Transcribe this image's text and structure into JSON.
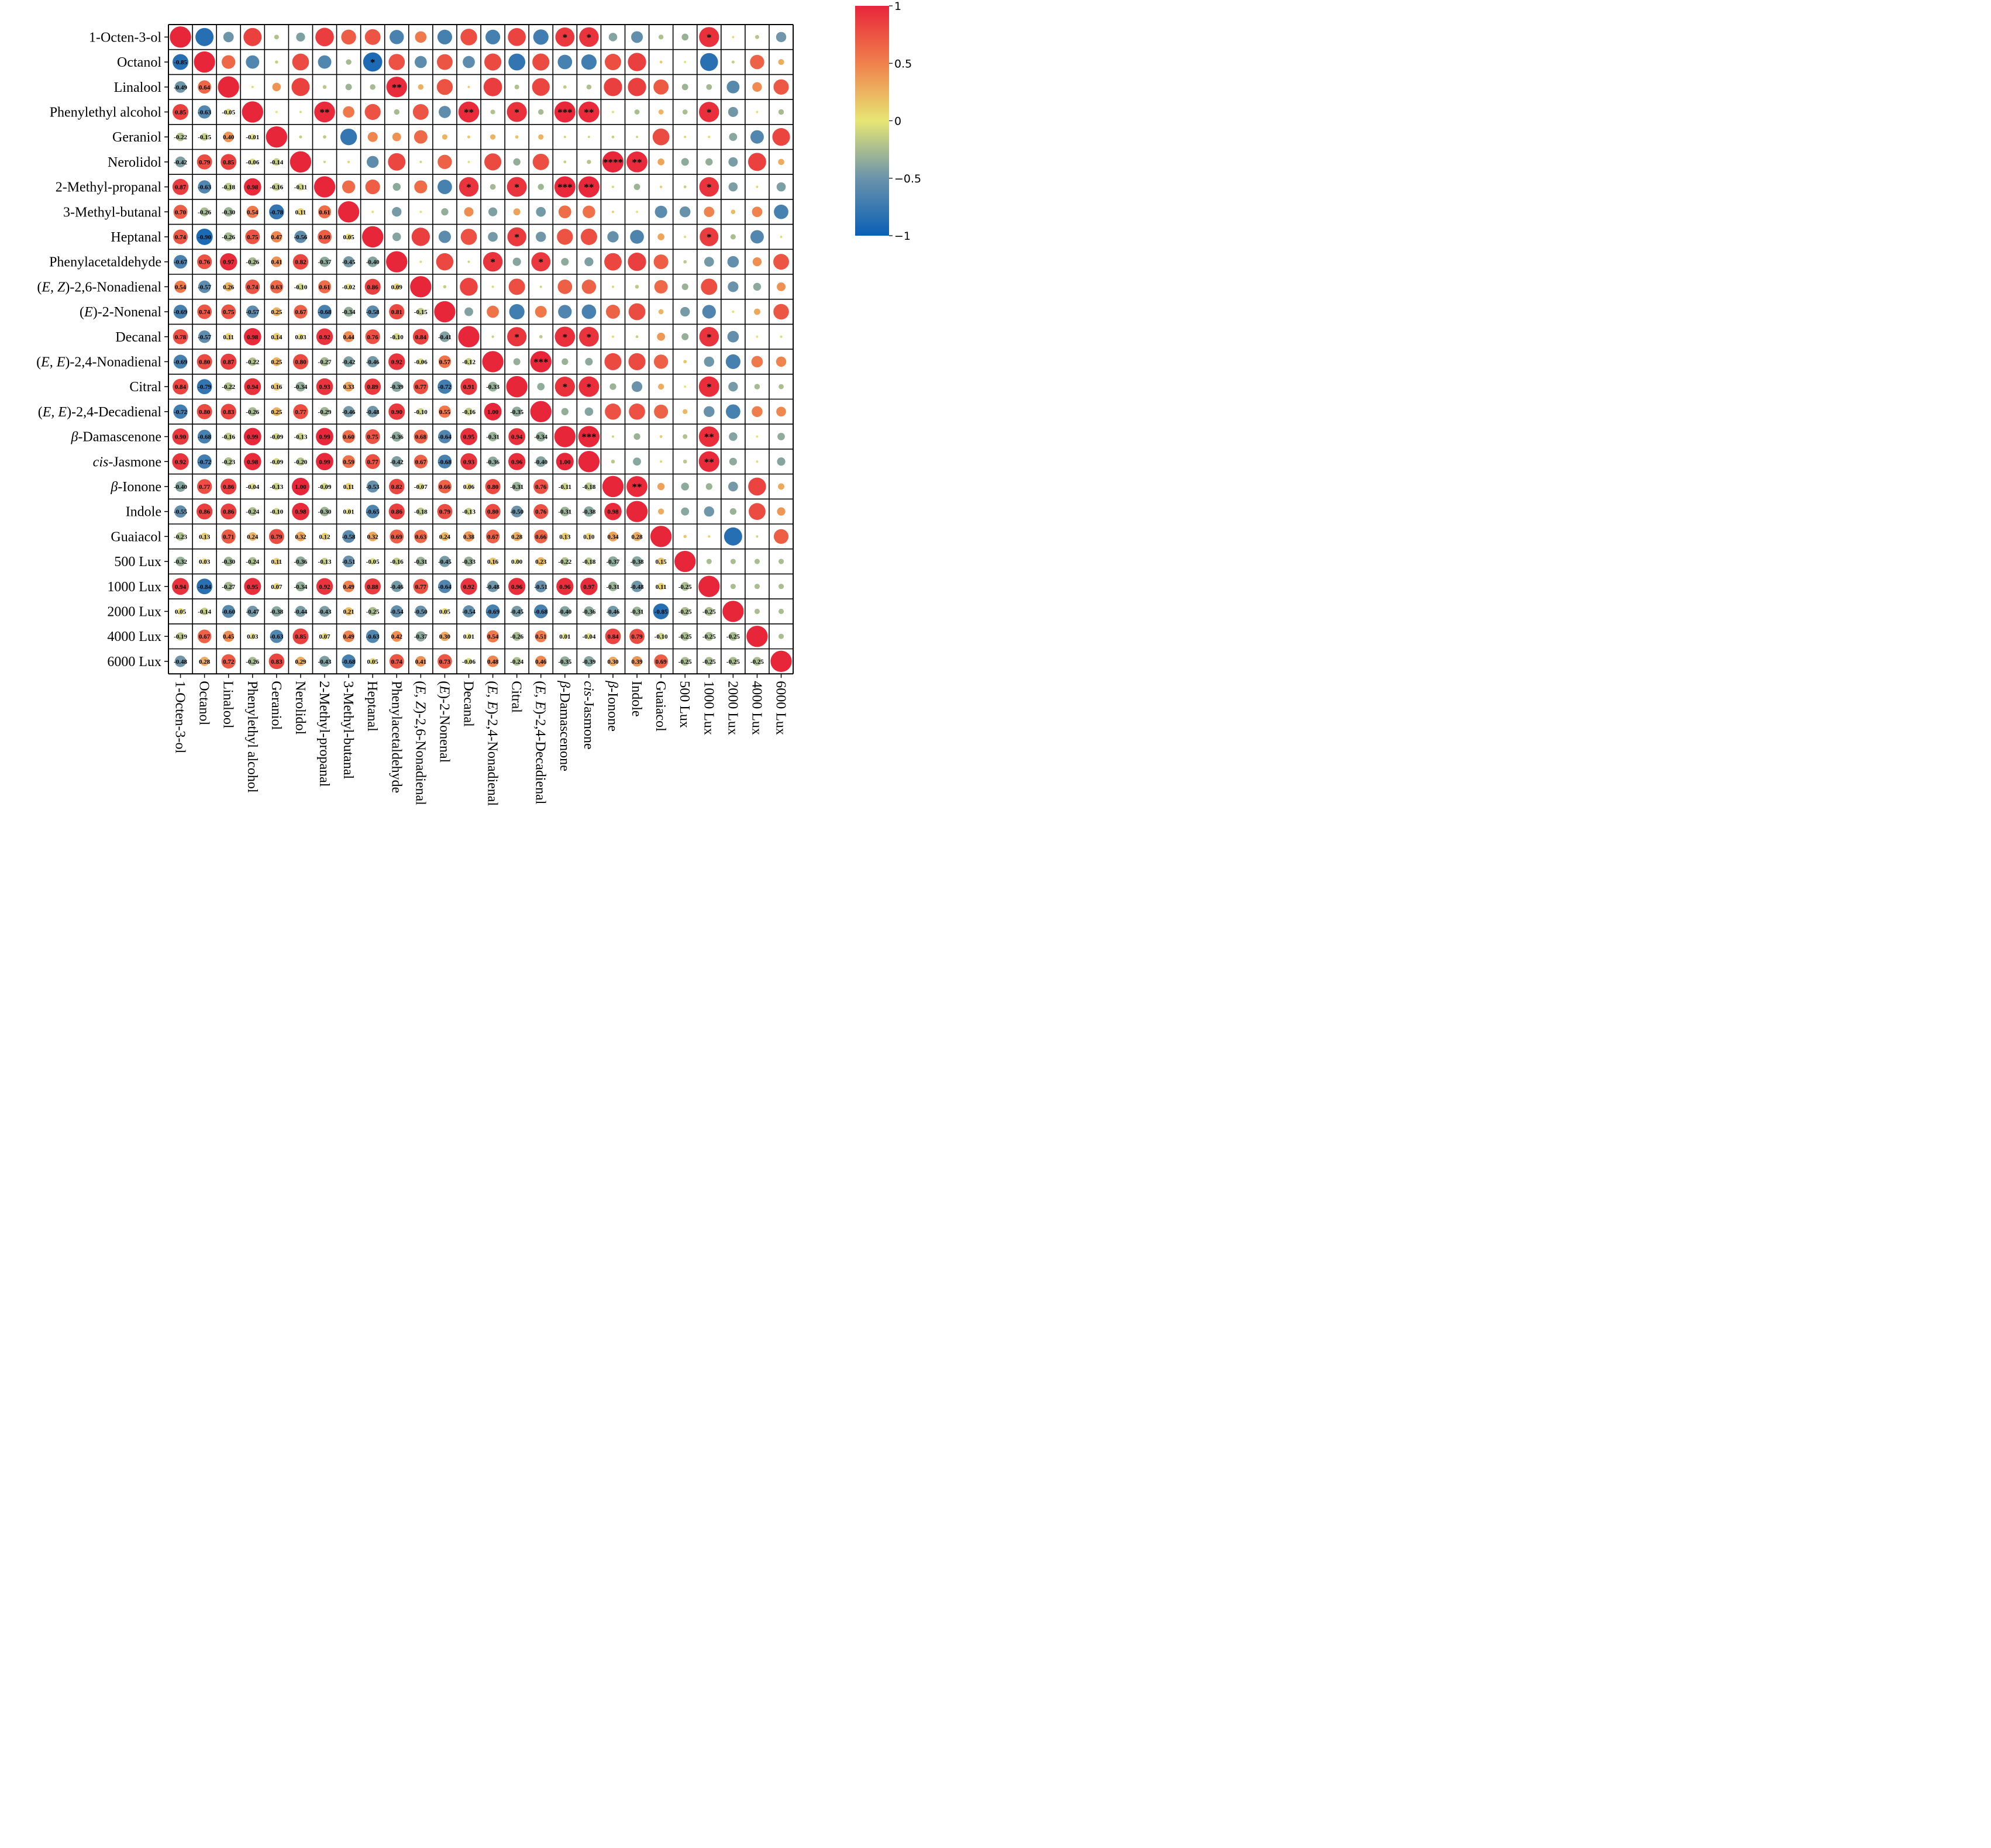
{
  "chart_data": {
    "type": "heatmap",
    "title": "",
    "variables": [
      {
        "label": "1-Octen-3-ol"
      },
      {
        "label": "Octanol"
      },
      {
        "label": "Linalool"
      },
      {
        "label": "Phenylethyl alcohol"
      },
      {
        "label": "Geraniol"
      },
      {
        "label": "Nerolidol"
      },
      {
        "label": "2-Methyl-propanal"
      },
      {
        "label": "3-Methyl-butanal"
      },
      {
        "label": "Heptanal"
      },
      {
        "label": "Phenylacetaldehyde"
      },
      {
        "label_parts": [
          {
            "t": "("
          },
          {
            "t": "E, Z",
            "i": true
          },
          {
            "t": ")-2,6-Nonadienal"
          }
        ]
      },
      {
        "label_parts": [
          {
            "t": "("
          },
          {
            "t": "E",
            "i": true
          },
          {
            "t": ")-2-Nonenal"
          }
        ]
      },
      {
        "label": "Decanal"
      },
      {
        "label_parts": [
          {
            "t": "("
          },
          {
            "t": "E, E",
            "i": true
          },
          {
            "t": ")-2,4-Nonadienal"
          }
        ]
      },
      {
        "label": "Citral"
      },
      {
        "label_parts": [
          {
            "t": "("
          },
          {
            "t": "E, E",
            "i": true
          },
          {
            "t": ")-2,4-Decadienal"
          }
        ]
      },
      {
        "label_parts": [
          {
            "t": "β",
            "i": true
          },
          {
            "t": "-Damascenone"
          }
        ]
      },
      {
        "label_parts": [
          {
            "t": "cis",
            "i": true
          },
          {
            "t": "-Jasmone"
          }
        ]
      },
      {
        "label_parts": [
          {
            "t": "β",
            "i": true
          },
          {
            "t": "-Ionone"
          }
        ]
      },
      {
        "label": "Indole"
      },
      {
        "label": "Guaiacol"
      },
      {
        "label": "500 Lux"
      },
      {
        "label": "1000 Lux"
      },
      {
        "label": "2000 Lux"
      },
      {
        "label": "4000 Lux"
      },
      {
        "label": "6000 Lux"
      }
    ],
    "lower_triangle_values": [
      [],
      [
        -0.85
      ],
      [
        -0.49,
        0.64
      ],
      [
        0.85,
        -0.63,
        -0.05
      ],
      [
        -0.22,
        -0.15,
        0.4,
        -0.01
      ],
      [
        -0.42,
        0.79,
        0.85,
        -0.06,
        -0.14
      ],
      [
        0.87,
        -0.63,
        -0.18,
        0.98,
        -0.16,
        -0.11
      ],
      [
        0.7,
        -0.26,
        -0.3,
        0.54,
        -0.78,
        0.11,
        0.61
      ],
      [
        0.74,
        -0.9,
        -0.26,
        0.75,
        0.47,
        -0.56,
        0.69,
        0.05
      ],
      [
        -0.67,
        0.76,
        0.97,
        -0.26,
        0.41,
        0.82,
        -0.37,
        -0.45,
        -0.4
      ],
      [
        0.54,
        -0.57,
        0.26,
        0.74,
        0.63,
        -0.1,
        0.61,
        -0.02,
        0.86,
        0.09
      ],
      [
        -0.69,
        0.74,
        0.75,
        -0.57,
        0.25,
        0.67,
        -0.68,
        -0.34,
        -0.58,
        0.81,
        -0.15
      ],
      [
        0.78,
        -0.57,
        0.11,
        0.98,
        0.14,
        0.03,
        0.92,
        0.44,
        0.76,
        -0.1,
        0.84,
        -0.41
      ],
      [
        -0.69,
        0.8,
        0.87,
        -0.22,
        0.25,
        0.8,
        -0.27,
        -0.42,
        -0.46,
        0.92,
        -0.06,
        0.57,
        -0.12
      ],
      [
        0.84,
        -0.79,
        -0.22,
        0.94,
        0.16,
        -0.34,
        0.93,
        0.33,
        0.89,
        -0.39,
        0.77,
        -0.72,
        0.91,
        -0.33
      ],
      [
        -0.72,
        0.8,
        0.83,
        -0.26,
        0.25,
        0.77,
        -0.29,
        -0.46,
        -0.48,
        0.9,
        -0.1,
        0.55,
        -0.16,
        1.0,
        -0.35
      ],
      [
        0.9,
        -0.68,
        -0.16,
        0.99,
        -0.09,
        -0.13,
        0.99,
        0.6,
        0.75,
        -0.36,
        0.68,
        -0.64,
        0.95,
        -0.31,
        0.94,
        -0.34
      ],
      [
        0.92,
        -0.72,
        -0.23,
        0.98,
        -0.09,
        -0.2,
        0.99,
        0.59,
        0.77,
        -0.42,
        0.67,
        -0.68,
        0.93,
        -0.36,
        0.96,
        -0.4,
        1.0
      ],
      [
        -0.4,
        0.77,
        0.86,
        -0.04,
        -0.13,
        1.0,
        -0.09,
        0.11,
        -0.53,
        0.82,
        -0.07,
        0.66,
        0.06,
        0.8,
        -0.31,
        0.76,
        -0.11,
        -0.18
      ],
      [
        -0.55,
        0.86,
        0.86,
        -0.24,
        -0.1,
        0.98,
        -0.3,
        0.01,
        -0.65,
        0.86,
        -0.18,
        0.79,
        -0.13,
        0.8,
        -0.5,
        0.76,
        -0.31,
        -0.38,
        0.98
      ],
      [
        -0.23,
        0.13,
        0.71,
        0.24,
        0.79,
        0.32,
        0.12,
        -0.58,
        0.32,
        0.69,
        0.63,
        0.24,
        0.38,
        0.67,
        0.28,
        0.66,
        0.13,
        0.1,
        0.34,
        0.28
      ],
      [
        -0.32,
        0.03,
        -0.3,
        -0.24,
        0.11,
        -0.36,
        -0.13,
        -0.51,
        -0.05,
        -0.16,
        -0.31,
        -0.45,
        -0.33,
        0.16,
        0.0,
        0.23,
        -0.22,
        -0.18,
        -0.37,
        -0.38,
        0.15
      ],
      [
        0.94,
        -0.84,
        -0.27,
        0.95,
        0.07,
        -0.34,
        0.92,
        0.49,
        0.88,
        -0.46,
        0.77,
        -0.64,
        0.92,
        -0.48,
        0.96,
        -0.51,
        0.96,
        0.97,
        -0.31,
        -0.48,
        0.11,
        -0.25
      ],
      [
        0.05,
        -0.14,
        -0.6,
        -0.47,
        -0.38,
        -0.44,
        -0.43,
        0.21,
        -0.25,
        -0.54,
        -0.5,
        0.05,
        -0.54,
        -0.69,
        -0.45,
        -0.68,
        -0.4,
        -0.36,
        -0.46,
        -0.31,
        -0.85,
        -0.25,
        -0.25
      ],
      [
        -0.19,
        0.67,
        0.45,
        0.03,
        -0.63,
        0.85,
        0.07,
        0.49,
        -0.63,
        0.42,
        -0.37,
        0.3,
        0.01,
        0.54,
        -0.26,
        0.51,
        0.01,
        -0.04,
        0.84,
        0.79,
        -0.1,
        -0.25,
        -0.25,
        -0.25
      ],
      [
        -0.48,
        0.28,
        0.72,
        -0.26,
        0.83,
        0.29,
        -0.43,
        -0.68,
        0.05,
        0.74,
        0.41,
        0.73,
        -0.06,
        0.48,
        -0.24,
        0.46,
        -0.35,
        -0.39,
        0.3,
        0.39,
        0.69,
        -0.25,
        -0.25,
        -0.25,
        -0.25
      ]
    ],
    "significance": [
      {
        "row": 0,
        "col": 16,
        "stars": "*"
      },
      {
        "row": 0,
        "col": 17,
        "stars": "*"
      },
      {
        "row": 0,
        "col": 22,
        "stars": "*"
      },
      {
        "row": 1,
        "col": 8,
        "stars": "*"
      },
      {
        "row": 2,
        "col": 9,
        "stars": "**"
      },
      {
        "row": 3,
        "col": 6,
        "stars": "**"
      },
      {
        "row": 3,
        "col": 12,
        "stars": "**"
      },
      {
        "row": 3,
        "col": 14,
        "stars": "*"
      },
      {
        "row": 3,
        "col": 16,
        "stars": "***"
      },
      {
        "row": 3,
        "col": 17,
        "stars": "**"
      },
      {
        "row": 3,
        "col": 22,
        "stars": "*"
      },
      {
        "row": 5,
        "col": 18,
        "stars": "****"
      },
      {
        "row": 5,
        "col": 19,
        "stars": "**"
      },
      {
        "row": 6,
        "col": 12,
        "stars": "*"
      },
      {
        "row": 6,
        "col": 14,
        "stars": "*"
      },
      {
        "row": 6,
        "col": 16,
        "stars": "***"
      },
      {
        "row": 6,
        "col": 17,
        "stars": "**"
      },
      {
        "row": 6,
        "col": 22,
        "stars": "*"
      },
      {
        "row": 8,
        "col": 14,
        "stars": "*"
      },
      {
        "row": 8,
        "col": 22,
        "stars": "*"
      },
      {
        "row": 9,
        "col": 13,
        "stars": "*"
      },
      {
        "row": 9,
        "col": 15,
        "stars": "*"
      },
      {
        "row": 12,
        "col": 14,
        "stars": "*"
      },
      {
        "row": 12,
        "col": 16,
        "stars": "*"
      },
      {
        "row": 12,
        "col": 17,
        "stars": "*"
      },
      {
        "row": 12,
        "col": 22,
        "stars": "*"
      },
      {
        "row": 13,
        "col": 15,
        "stars": "***"
      },
      {
        "row": 14,
        "col": 16,
        "stars": "*"
      },
      {
        "row": 14,
        "col": 17,
        "stars": "*"
      },
      {
        "row": 14,
        "col": 22,
        "stars": "*"
      },
      {
        "row": 16,
        "col": 17,
        "stars": "***"
      },
      {
        "row": 16,
        "col": 22,
        "stars": "**"
      },
      {
        "row": 17,
        "col": 22,
        "stars": "**"
      },
      {
        "row": 18,
        "col": 19,
        "stars": "**"
      }
    ],
    "colorbar": {
      "range": [
        -1,
        1
      ],
      "ticks": [
        1,
        0.5,
        0,
        -0.5,
        -1
      ],
      "tick_labels": [
        "1",
        "0.5",
        "0",
        "−0.5",
        "−1"
      ],
      "colors": [
        "#0a60b6",
        "#6a93ab",
        "#e7e674",
        "#f0804c",
        "#e8263a"
      ]
    }
  }
}
